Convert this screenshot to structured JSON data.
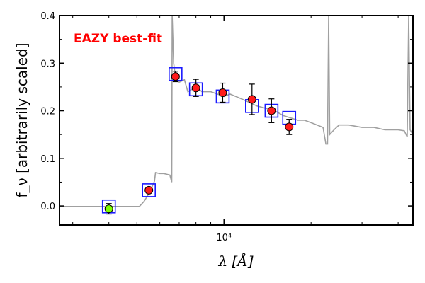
{
  "chart_data": {
    "type": "scatter",
    "title": "",
    "annotation": "EAZY best-fit",
    "xlabel": "λ [Å]",
    "ylabel": "f_ν [arbitrarily scaled]",
    "x_scale": "log",
    "xlim": [
      2700,
      45000
    ],
    "ylim": [
      -0.04,
      0.4
    ],
    "x_ticks": [
      {
        "value": 10000,
        "label": "10⁴"
      }
    ],
    "y_ticks": [
      {
        "value": 0.0,
        "label": "0.0"
      },
      {
        "value": 0.1,
        "label": "0.1"
      },
      {
        "value": 0.2,
        "label": "0.2"
      },
      {
        "value": 0.3,
        "label": "0.3"
      },
      {
        "value": 0.4,
        "label": "0.4"
      }
    ],
    "grid": false,
    "colors": {
      "template": "#a0a0a0",
      "model_box": "#1a1aff",
      "data_point": "#ff1a1a",
      "nondetection_point": "#7fff00",
      "annotation": "#ff0000"
    },
    "series": [
      {
        "kind": "template_line",
        "points": [
          [
            2700,
            -0.001
          ],
          [
            3500,
            -0.001
          ],
          [
            4200,
            -0.001
          ],
          [
            5100,
            -0.001
          ],
          [
            5300,
            0.01
          ],
          [
            5550,
            0.03
          ],
          [
            5750,
            0.052
          ],
          [
            5800,
            0.07
          ],
          [
            6000,
            0.068
          ],
          [
            6200,
            0.068
          ],
          [
            6500,
            0.065
          ],
          [
            6600,
            0.05
          ],
          [
            6620,
            0.4
          ],
          [
            6700,
            0.3
          ],
          [
            6800,
            0.27
          ],
          [
            7000,
            0.26
          ],
          [
            7300,
            0.265
          ],
          [
            7500,
            0.24
          ],
          [
            8000,
            0.25
          ],
          [
            8400,
            0.24
          ],
          [
            9000,
            0.24
          ],
          [
            9500,
            0.235
          ],
          [
            10000,
            0.23
          ],
          [
            10500,
            0.235
          ],
          [
            11000,
            0.23
          ],
          [
            11500,
            0.225
          ],
          [
            12000,
            0.22
          ],
          [
            13000,
            0.21
          ],
          [
            14000,
            0.205
          ],
          [
            15000,
            0.2
          ],
          [
            16000,
            0.19
          ],
          [
            17000,
            0.185
          ],
          [
            18000,
            0.18
          ],
          [
            19000,
            0.18
          ],
          [
            20000,
            0.175
          ],
          [
            21000,
            0.17
          ],
          [
            22000,
            0.165
          ],
          [
            22500,
            0.13
          ],
          [
            22800,
            0.13
          ],
          [
            23000,
            0.4
          ],
          [
            23200,
            0.15
          ],
          [
            24000,
            0.16
          ],
          [
            25000,
            0.17
          ],
          [
            27000,
            0.17
          ],
          [
            30000,
            0.165
          ],
          [
            33000,
            0.165
          ],
          [
            36000,
            0.16
          ],
          [
            40000,
            0.16
          ],
          [
            42000,
            0.158
          ],
          [
            43000,
            0.145
          ],
          [
            43500,
            0.4
          ],
          [
            44000,
            0.16
          ],
          [
            45000,
            0.15
          ]
        ]
      },
      {
        "kind": "model_boxes",
        "points": [
          [
            4000,
            -0.001
          ],
          [
            5500,
            0.033
          ],
          [
            6800,
            0.277
          ],
          [
            8000,
            0.245
          ],
          [
            9900,
            0.23
          ],
          [
            12500,
            0.21
          ],
          [
            14600,
            0.2
          ],
          [
            16800,
            0.185
          ]
        ]
      },
      {
        "kind": "photometry",
        "points": [
          {
            "x": 4000,
            "y": -0.006,
            "err": 0.011,
            "detected": false
          },
          {
            "x": 5500,
            "y": 0.033,
            "err": 0.004,
            "detected": true
          },
          {
            "x": 6800,
            "y": 0.272,
            "err": 0.011,
            "detected": true
          },
          {
            "x": 8000,
            "y": 0.248,
            "err": 0.018,
            "detected": true
          },
          {
            "x": 9900,
            "y": 0.238,
            "err": 0.02,
            "detected": true
          },
          {
            "x": 12500,
            "y": 0.224,
            "err": 0.032,
            "detected": true
          },
          {
            "x": 14600,
            "y": 0.2,
            "err": 0.025,
            "detected": true
          },
          {
            "x": 16800,
            "y": 0.166,
            "err": 0.016,
            "detected": true
          }
        ]
      }
    ]
  }
}
